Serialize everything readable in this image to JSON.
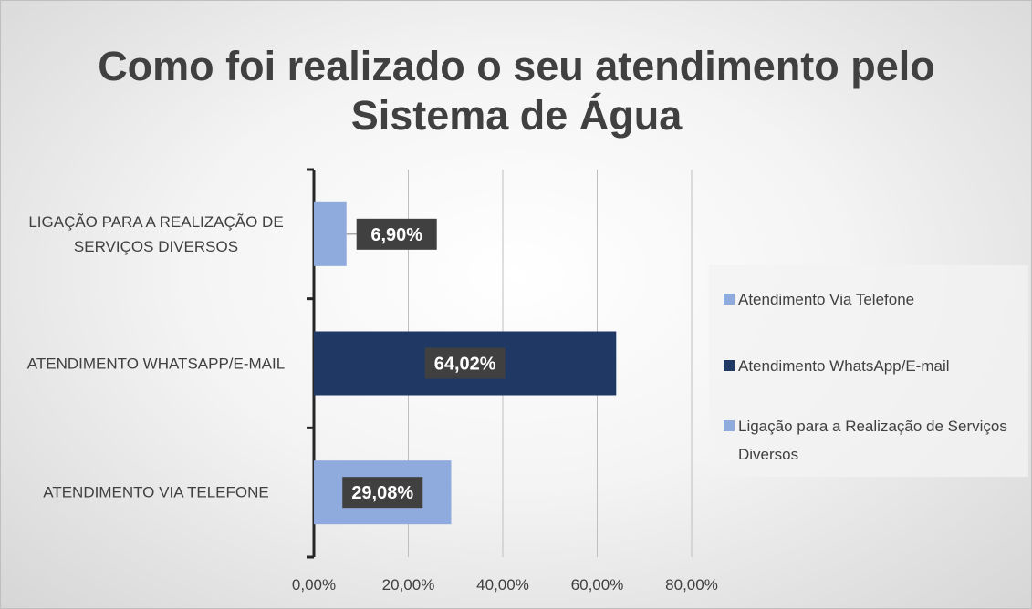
{
  "chart_data": {
    "type": "barh",
    "title": "Como foi realizado o seu atendimento pelo Sistema de Água",
    "categories": [
      "LIGAÇÃO PARA A REALIZAÇÃO DE SERVIÇOS DIVERSOS",
      "ATENDIMENTO WHATSAPP/E-MAIL",
      "ATENDIMENTO VIA TELEFONE"
    ],
    "series": [
      {
        "name": "Atendimento Via Telefone",
        "color": "#8faadc",
        "values": [
          null,
          null,
          29.08
        ],
        "value_labels": [
          null,
          null,
          "29,08%"
        ]
      },
      {
        "name": "Atendimento WhatsApp/E-mail",
        "color": "#203864",
        "values": [
          null,
          64.02,
          null
        ],
        "value_labels": [
          null,
          "64,02%",
          null
        ]
      },
      {
        "name": "Ligação para a Realização de Serviços Diversos",
        "color": "#8faadc",
        "values": [
          6.9,
          null,
          null
        ],
        "value_labels": [
          "6,90%",
          null,
          null
        ]
      }
    ],
    "xlim": [
      0,
      80
    ],
    "xticks": [
      {
        "value": 0,
        "label": "0,00%"
      },
      {
        "value": 20,
        "label": "20,00%"
      },
      {
        "value": 40,
        "label": "40,00%"
      },
      {
        "value": 60,
        "label": "60,00%"
      },
      {
        "value": 80,
        "label": "80,00%"
      }
    ],
    "grid": true,
    "legend": "right"
  }
}
